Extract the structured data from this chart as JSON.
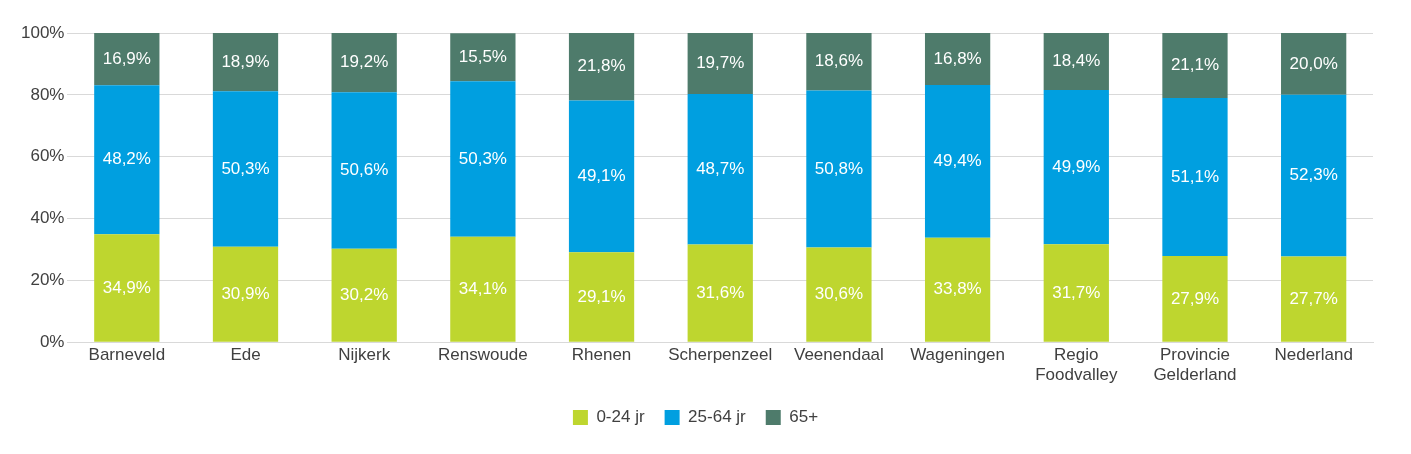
{
  "chart_data": {
    "type": "bar",
    "stacked": true,
    "categories": [
      "Barneveld",
      "Ede",
      "Nijkerk",
      "Renswoude",
      "Rhenen",
      "Scherpenzeel",
      "Veenendaal",
      "Wageningen",
      "Regio Foodvalley",
      "Provincie Gelderland",
      "Nederland"
    ],
    "series": [
      {
        "name": "0-24 jr",
        "color": "#bed62f",
        "values": [
          34.9,
          30.9,
          30.2,
          34.1,
          29.1,
          31.6,
          30.6,
          33.8,
          31.7,
          27.9,
          27.7
        ],
        "value_labels": [
          "34,9%",
          "30,9%",
          "30,2%",
          "34,1%",
          "29,1%",
          "31,6%",
          "30,6%",
          "33,8%",
          "31,7%",
          "27,9%",
          "27,7%"
        ]
      },
      {
        "name": "25-64 jr",
        "color": "#009fe0",
        "values": [
          48.2,
          50.3,
          50.6,
          50.3,
          49.1,
          48.7,
          50.8,
          49.4,
          49.9,
          51.1,
          52.3
        ],
        "value_labels": [
          "48,2%",
          "50,3%",
          "50,6%",
          "50,3%",
          "49,1%",
          "48,7%",
          "50,8%",
          "49,4%",
          "49,9%",
          "51,1%",
          "52,3%"
        ]
      },
      {
        "name": "65+",
        "color": "#4e7b6b",
        "values": [
          16.9,
          18.9,
          19.2,
          15.5,
          21.8,
          19.7,
          18.6,
          16.8,
          18.4,
          21.1,
          20.0
        ],
        "value_labels": [
          "16,9%",
          "18,9%",
          "19,2%",
          "15,5%",
          "21,8%",
          "19,7%",
          "18,6%",
          "16,8%",
          "18,4%",
          "21,1%",
          "20,0%"
        ]
      }
    ],
    "ylim": [
      0,
      100
    ],
    "yticks": [
      {
        "value": 0,
        "label": "0%"
      },
      {
        "value": 20,
        "label": "20%"
      },
      {
        "value": 40,
        "label": "40%"
      },
      {
        "value": 60,
        "label": "60%"
      },
      {
        "value": 80,
        "label": "80%"
      },
      {
        "value": 100,
        "label": "100%"
      }
    ],
    "grid": "y",
    "legend": "bottom"
  }
}
